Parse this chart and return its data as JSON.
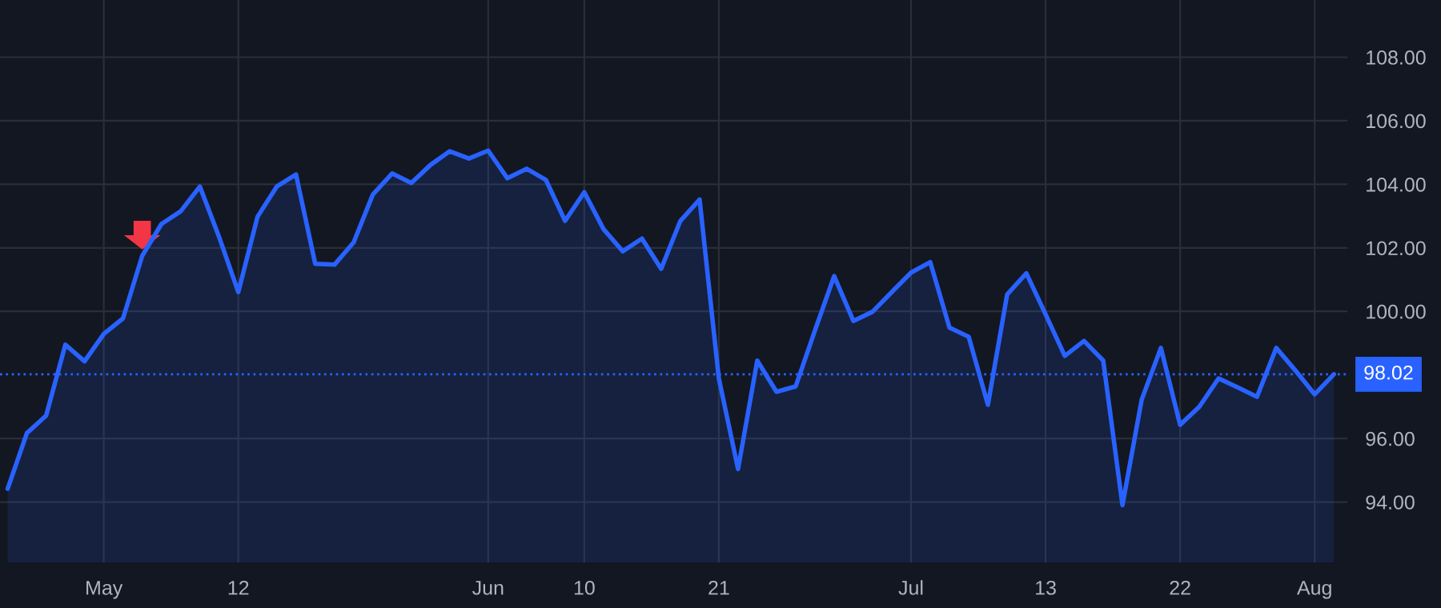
{
  "chart_data": {
    "type": "area",
    "categories": [
      null,
      null,
      null,
      null,
      null,
      "May",
      null,
      null,
      null,
      null,
      null,
      null,
      "12",
      null,
      null,
      null,
      null,
      null,
      null,
      null,
      null,
      null,
      null,
      null,
      null,
      "Jun",
      null,
      null,
      null,
      null,
      "10",
      null,
      null,
      null,
      null,
      null,
      null,
      "21",
      null,
      null,
      null,
      null,
      null,
      null,
      null,
      null,
      null,
      "Jul",
      null,
      null,
      null,
      null,
      null,
      null,
      "13",
      null,
      null,
      null,
      null,
      null,
      null,
      "22",
      null,
      null,
      null,
      null,
      null,
      null,
      "Aug",
      null
    ],
    "series": [
      {
        "color": "#2962ff",
        "values": [
          94.42,
          96.17,
          96.72,
          98.95,
          98.43,
          99.29,
          99.78,
          101.75,
          102.75,
          103.15,
          103.93,
          102.34,
          100.61,
          102.98,
          103.93,
          104.31,
          101.5,
          101.47,
          102.17,
          103.68,
          104.34,
          104.04,
          104.61,
          105.04,
          104.81,
          105.06,
          104.19,
          104.49,
          104.14,
          102.85,
          103.75,
          102.59,
          101.89,
          102.29,
          101.34,
          102.85,
          103.52,
          97.89,
          95.04,
          98.45,
          97.47,
          97.64,
          99.4,
          101.11,
          99.7,
          99.99,
          100.61,
          101.22,
          101.55,
          99.49,
          99.2,
          97.06,
          100.53,
          101.2,
          99.91,
          98.6,
          99.07,
          98.45,
          93.9,
          97.22,
          98.85,
          96.43,
          97.0,
          97.89,
          97.61,
          97.31,
          98.85,
          98.14,
          97.39,
          98.02
        ]
      }
    ],
    "ylim": [
      92.1,
      109.8
    ],
    "yticks": [
      {
        "value": 94,
        "label": "94.00"
      },
      {
        "value": 96,
        "label": "96.00"
      },
      {
        "value": 100,
        "label": "100.00"
      },
      {
        "value": 102,
        "label": "102.00"
      },
      {
        "value": 104,
        "label": "104.00"
      },
      {
        "value": 106,
        "label": "106.00"
      },
      {
        "value": 108,
        "label": "108.00"
      }
    ],
    "ref_lines": [
      {
        "axis": "y",
        "value": 98.02,
        "label": "98.02",
        "color": "#2962ff",
        "line_style": "dotted"
      }
    ],
    "grid": true,
    "legend": false
  }
}
